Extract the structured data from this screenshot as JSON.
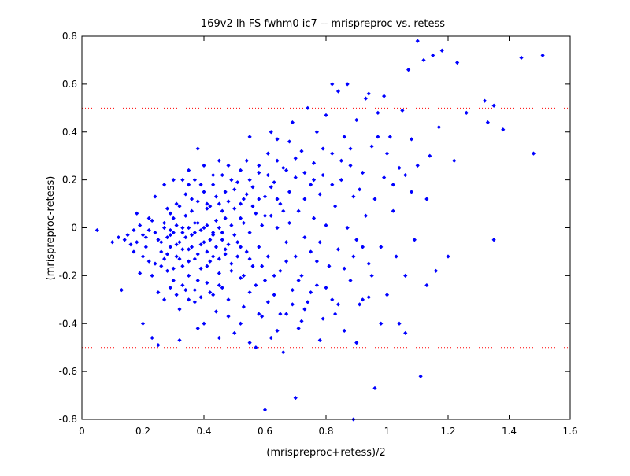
{
  "chart_data": {
    "type": "scatter",
    "title": "169v2 lh FS fwhm0 ic7 -- mrispreproc vs. retess",
    "xlabel": "(mrispreproc+retess)/2",
    "ylabel": "(mrispreproc-retess)",
    "xlim": [
      0,
      1.6
    ],
    "ylim": [
      -0.8,
      0.8
    ],
    "xticks": [
      0,
      0.2,
      0.4,
      0.6,
      0.8,
      1,
      1.2,
      1.4,
      1.6
    ],
    "yticks": [
      -0.8,
      -0.6,
      -0.4,
      -0.2,
      0,
      0.2,
      0.4,
      0.6,
      0.8
    ],
    "xtick_labels": [
      "0",
      "0.2",
      "0.4",
      "0.6",
      "0.8",
      "1",
      "1.2",
      "1.4",
      "1.6"
    ],
    "ytick_labels": [
      "-0.8",
      "-0.6",
      "-0.4",
      "-0.2",
      "0",
      "0.2",
      "0.4",
      "0.6",
      "0.8"
    ],
    "grid": false,
    "reference_lines": [
      0.5,
      -0.5
    ],
    "colors": {
      "points": "#0000ff",
      "reference": "#ff0000",
      "axes": "#000000",
      "background": "#ffffff"
    },
    "points": [
      [
        0.05,
        -0.01
      ],
      [
        0.1,
        -0.06
      ],
      [
        0.12,
        -0.04
      ],
      [
        0.13,
        -0.26
      ],
      [
        0.14,
        -0.05
      ],
      [
        0.15,
        -0.03
      ],
      [
        0.16,
        -0.07
      ],
      [
        0.17,
        -0.01
      ],
      [
        0.17,
        -0.1
      ],
      [
        0.18,
        -0.06
      ],
      [
        0.19,
        -0.19
      ],
      [
        0.2,
        -0.03
      ],
      [
        0.2,
        -0.12
      ],
      [
        0.21,
        -0.08
      ],
      [
        0.22,
        -0.01
      ],
      [
        0.23,
        -0.2
      ],
      [
        0.23,
        0.03
      ],
      [
        0.24,
        -0.15
      ],
      [
        0.25,
        -0.05
      ],
      [
        0.25,
        -0.27
      ],
      [
        0.26,
        -0.1
      ],
      [
        0.27,
        0.02
      ],
      [
        0.27,
        -0.3
      ],
      [
        0.28,
        -0.04
      ],
      [
        0.28,
        -0.18
      ],
      [
        0.29,
        -0.08
      ],
      [
        0.29,
        0.06
      ],
      [
        0.3,
        -0.02
      ],
      [
        0.3,
        -0.22
      ],
      [
        0.31,
        -0.12
      ],
      [
        0.31,
        0.1
      ],
      [
        0.32,
        -0.34
      ],
      [
        0.32,
        -0.06
      ],
      [
        0.33,
        0.0
      ],
      [
        0.33,
        -0.16
      ],
      [
        0.34,
        -0.26
      ],
      [
        0.34,
        0.05
      ],
      [
        0.35,
        -0.09
      ],
      [
        0.35,
        -0.2
      ],
      [
        0.36,
        0.12
      ],
      [
        0.36,
        -0.03
      ],
      [
        0.37,
        -0.31
      ],
      [
        0.37,
        -0.13
      ],
      [
        0.38,
        0.02
      ],
      [
        0.38,
        -0.22
      ],
      [
        0.39,
        0.18
      ],
      [
        0.39,
        -0.07
      ],
      [
        0.4,
        -0.4
      ],
      [
        0.4,
        0.0
      ],
      [
        0.41,
        -0.16
      ],
      [
        0.41,
        0.08
      ],
      [
        0.42,
        -0.27
      ],
      [
        0.42,
        -0.05
      ],
      [
        0.43,
        0.22
      ],
      [
        0.43,
        -0.12
      ],
      [
        0.44,
        0.03
      ],
      [
        0.44,
        -0.35
      ],
      [
        0.45,
        -0.19
      ],
      [
        0.45,
        0.1
      ],
      [
        0.46,
        -0.02
      ],
      [
        0.46,
        -0.25
      ],
      [
        0.47,
        0.15
      ],
      [
        0.47,
        -0.09
      ],
      [
        0.48,
        0.26
      ],
      [
        0.48,
        -0.3
      ],
      [
        0.49,
        0.01
      ],
      [
        0.49,
        -0.15
      ],
      [
        0.5,
        0.08
      ],
      [
        0.5,
        -0.44
      ],
      [
        0.51,
        -0.06
      ],
      [
        0.51,
        0.19
      ],
      [
        0.52,
        -0.21
      ],
      [
        0.52,
        0.04
      ],
      [
        0.53,
        -0.33
      ],
      [
        0.53,
        0.12
      ],
      [
        0.54,
        -0.1
      ],
      [
        0.54,
        0.28
      ],
      [
        0.55,
        -0.02
      ],
      [
        0.55,
        -0.27
      ],
      [
        0.56,
        0.17
      ],
      [
        0.56,
        -0.16
      ],
      [
        0.57,
        0.06
      ],
      [
        0.57,
        -0.5
      ],
      [
        0.58,
        -0.08
      ],
      [
        0.58,
        0.23
      ],
      [
        0.59,
        -0.37
      ],
      [
        0.59,
        0.01
      ],
      [
        0.6,
        0.13
      ],
      [
        0.6,
        -0.22
      ],
      [
        0.61,
        0.31
      ],
      [
        0.61,
        -0.12
      ],
      [
        0.62,
        -0.46
      ],
      [
        0.62,
        0.05
      ],
      [
        0.63,
        0.19
      ],
      [
        0.63,
        -0.28
      ],
      [
        0.64,
        0.0
      ],
      [
        0.64,
        0.37
      ],
      [
        0.65,
        -0.18
      ],
      [
        0.65,
        0.1
      ],
      [
        0.66,
        -0.52
      ],
      [
        0.66,
        0.25
      ],
      [
        0.67,
        -0.06
      ],
      [
        0.67,
        -0.36
      ],
      [
        0.68,
        0.15
      ],
      [
        0.68,
        0.02
      ],
      [
        0.69,
        -0.26
      ],
      [
        0.69,
        0.44
      ],
      [
        0.7,
        -0.12
      ],
      [
        0.7,
        0.21
      ],
      [
        0.71,
        0.07
      ],
      [
        0.71,
        -0.42
      ],
      [
        0.72,
        0.32
      ],
      [
        0.72,
        -0.2
      ],
      [
        0.73,
        0.12
      ],
      [
        0.73,
        -0.04
      ],
      [
        0.74,
        0.5
      ],
      [
        0.74,
        -0.31
      ],
      [
        0.75,
        0.18
      ],
      [
        0.75,
        -0.1
      ],
      [
        0.76,
        0.04
      ],
      [
        0.76,
        0.27
      ],
      [
        0.77,
        -0.24
      ],
      [
        0.77,
        0.4
      ],
      [
        0.78,
        -0.06
      ],
      [
        0.78,
        0.14
      ],
      [
        0.79,
        -0.38
      ],
      [
        0.79,
        0.22
      ],
      [
        0.8,
        0.01
      ],
      [
        0.8,
        0.47
      ],
      [
        0.81,
        -0.16
      ],
      [
        0.82,
        0.31
      ],
      [
        0.82,
        -0.3
      ],
      [
        0.83,
        0.09
      ],
      [
        0.84,
        0.57
      ],
      [
        0.84,
        -0.09
      ],
      [
        0.85,
        0.2
      ],
      [
        0.86,
        -0.43
      ],
      [
        0.86,
        0.38
      ],
      [
        0.87,
        0.0
      ],
      [
        0.88,
        0.26
      ],
      [
        0.88,
        -0.22
      ],
      [
        0.89,
        0.13
      ],
      [
        0.9,
        0.45
      ],
      [
        0.9,
        -0.05
      ],
      [
        0.91,
        -0.32
      ],
      [
        0.92,
        0.23
      ],
      [
        0.93,
        0.05
      ],
      [
        0.93,
        0.54
      ],
      [
        0.94,
        -0.15
      ],
      [
        0.95,
        0.34
      ],
      [
        0.96,
        -0.67
      ],
      [
        0.96,
        0.12
      ],
      [
        0.97,
        0.48
      ],
      [
        0.98,
        -0.08
      ],
      [
        0.99,
        0.21
      ],
      [
        1.0,
        -0.28
      ],
      [
        1.01,
        0.38
      ],
      [
        1.02,
        0.07
      ],
      [
        1.03,
        -0.12
      ],
      [
        1.04,
        0.25
      ],
      [
        1.05,
        0.49
      ],
      [
        1.06,
        -0.2
      ],
      [
        1.07,
        0.66
      ],
      [
        1.08,
        0.15
      ],
      [
        1.09,
        -0.05
      ],
      [
        1.1,
        0.78
      ],
      [
        1.11,
        -0.62
      ],
      [
        1.12,
        0.7
      ],
      [
        1.13,
        -0.24
      ],
      [
        1.14,
        0.3
      ],
      [
        1.15,
        0.72
      ],
      [
        1.16,
        -0.18
      ],
      [
        1.18,
        0.74
      ],
      [
        1.2,
        -0.12
      ],
      [
        1.22,
        0.28
      ],
      [
        1.23,
        0.69
      ],
      [
        1.26,
        0.48
      ],
      [
        1.32,
        0.53
      ],
      [
        1.33,
        0.44
      ],
      [
        1.35,
        0.51
      ],
      [
        1.35,
        -0.05
      ],
      [
        1.38,
        0.41
      ],
      [
        1.44,
        0.71
      ],
      [
        1.48,
        0.31
      ],
      [
        1.51,
        0.72
      ],
      [
        0.21,
        -0.04
      ],
      [
        0.22,
        -0.14
      ],
      [
        0.24,
        -0.02
      ],
      [
        0.26,
        -0.16
      ],
      [
        0.26,
        -0.06
      ],
      [
        0.28,
        -0.11
      ],
      [
        0.29,
        -0.03
      ],
      [
        0.3,
        -0.17
      ],
      [
        0.31,
        -0.07
      ],
      [
        0.32,
        -0.13
      ],
      [
        0.33,
        -0.09
      ],
      [
        0.34,
        -0.04
      ],
      [
        0.35,
        -0.14
      ],
      [
        0.36,
        -0.08
      ],
      [
        0.37,
        -0.02
      ],
      [
        0.38,
        -0.11
      ],
      [
        0.39,
        -0.17
      ],
      [
        0.4,
        -0.06
      ],
      [
        0.41,
        -0.1
      ],
      [
        0.42,
        -0.14
      ],
      [
        0.43,
        -0.03
      ],
      [
        0.44,
        -0.08
      ],
      [
        0.45,
        -0.13
      ],
      [
        0.46,
        -0.05
      ],
      [
        0.47,
        -0.11
      ],
      [
        0.48,
        -0.07
      ],
      [
        0.49,
        -0.18
      ],
      [
        0.5,
        -0.03
      ],
      [
        0.51,
        -0.12
      ],
      [
        0.52,
        -0.08
      ],
      [
        0.27,
        -0.13
      ],
      [
        0.29,
        -0.25
      ],
      [
        0.31,
        -0.28
      ],
      [
        0.33,
        -0.24
      ],
      [
        0.35,
        -0.3
      ],
      [
        0.37,
        -0.26
      ],
      [
        0.39,
        -0.29
      ],
      [
        0.41,
        -0.23
      ],
      [
        0.43,
        -0.28
      ],
      [
        0.45,
        -0.24
      ],
      [
        0.28,
        0.08
      ],
      [
        0.3,
        0.04
      ],
      [
        0.32,
        0.09
      ],
      [
        0.34,
        0.14
      ],
      [
        0.36,
        0.07
      ],
      [
        0.38,
        0.11
      ],
      [
        0.4,
        0.15
      ],
      [
        0.42,
        0.09
      ],
      [
        0.44,
        0.13
      ],
      [
        0.46,
        0.07
      ],
      [
        0.48,
        0.11
      ],
      [
        0.5,
        0.16
      ],
      [
        0.52,
        0.1
      ],
      [
        0.54,
        0.14
      ],
      [
        0.56,
        0.09
      ],
      [
        0.58,
        0.12
      ],
      [
        0.6,
        0.05
      ],
      [
        0.62,
        0.17
      ],
      [
        0.64,
        0.12
      ],
      [
        0.66,
        0.07
      ],
      [
        0.35,
        0.24
      ],
      [
        0.37,
        0.2
      ],
      [
        0.4,
        0.26
      ],
      [
        0.43,
        0.18
      ],
      [
        0.46,
        0.22
      ],
      [
        0.49,
        0.2
      ],
      [
        0.52,
        0.24
      ],
      [
        0.55,
        0.2
      ],
      [
        0.58,
        0.26
      ],
      [
        0.61,
        0.22
      ],
      [
        0.64,
        0.28
      ],
      [
        0.67,
        0.24
      ],
      [
        0.7,
        0.29
      ],
      [
        0.73,
        0.23
      ],
      [
        0.76,
        0.2
      ],
      [
        0.79,
        0.33
      ],
      [
        0.82,
        0.18
      ],
      [
        0.85,
        0.28
      ],
      [
        0.88,
        0.33
      ],
      [
        0.91,
        0.16
      ],
      [
        0.53,
        -0.2
      ],
      [
        0.55,
        -0.13
      ],
      [
        0.57,
        -0.24
      ],
      [
        0.59,
        -0.16
      ],
      [
        0.61,
        -0.31
      ],
      [
        0.63,
        -0.2
      ],
      [
        0.65,
        -0.36
      ],
      [
        0.67,
        -0.14
      ],
      [
        0.69,
        -0.32
      ],
      [
        0.71,
        -0.22
      ],
      [
        0.73,
        -0.34
      ],
      [
        0.75,
        -0.27
      ],
      [
        0.77,
        -0.14
      ],
      [
        0.8,
        -0.25
      ],
      [
        0.83,
        -0.36
      ],
      [
        0.86,
        -0.17
      ],
      [
        0.89,
        -0.12
      ],
      [
        0.92,
        -0.08
      ],
      [
        0.95,
        -0.2
      ],
      [
        0.98,
        -0.4
      ],
      [
        0.6,
        -0.76
      ],
      [
        0.7,
        -0.71
      ],
      [
        0.89,
        -0.8
      ],
      [
        0.2,
        -0.4
      ],
      [
        0.23,
        -0.46
      ],
      [
        0.25,
        -0.49
      ],
      [
        0.32,
        -0.47
      ],
      [
        0.38,
        -0.42
      ],
      [
        0.45,
        -0.46
      ],
      [
        0.55,
        -0.48
      ],
      [
        0.3,
        0.2
      ],
      [
        0.38,
        0.33
      ],
      [
        0.45,
        0.28
      ],
      [
        0.55,
        0.38
      ],
      [
        0.62,
        0.4
      ],
      [
        0.68,
        0.36
      ],
      [
        0.82,
        0.6
      ],
      [
        0.87,
        0.6
      ],
      [
        0.94,
        0.56
      ],
      [
        0.99,
        0.55
      ],
      [
        0.18,
        0.06
      ],
      [
        0.19,
        0.01
      ],
      [
        0.22,
        0.04
      ],
      [
        0.24,
        0.13
      ],
      [
        0.27,
        0.18
      ],
      [
        0.33,
        0.2
      ],
      [
        0.35,
        0.18
      ],
      [
        0.41,
        0.1
      ],
      [
        0.47,
        0.04
      ],
      [
        0.53,
        0.02
      ],
      [
        0.27,
        0.0
      ],
      [
        0.29,
        -0.01
      ],
      [
        0.31,
        0.01
      ],
      [
        0.33,
        -0.02
      ],
      [
        0.35,
        0.0
      ],
      [
        0.37,
        0.02
      ],
      [
        0.39,
        -0.01
      ],
      [
        0.41,
        0.01
      ],
      [
        0.43,
        -0.02
      ],
      [
        0.45,
        0.0
      ],
      [
        1.02,
        0.18
      ],
      [
        1.06,
        0.22
      ],
      [
        1.08,
        0.37
      ],
      [
        1.1,
        0.26
      ],
      [
        1.13,
        0.12
      ],
      [
        1.17,
        0.42
      ],
      [
        1.0,
        0.31
      ],
      [
        0.97,
        0.38
      ],
      [
        1.04,
        -0.4
      ],
      [
        1.06,
        -0.44
      ],
      [
        0.92,
        -0.3
      ],
      [
        0.94,
        -0.29
      ],
      [
        0.9,
        -0.48
      ],
      [
        0.84,
        -0.32
      ],
      [
        0.78,
        -0.47
      ],
      [
        0.72,
        -0.39
      ],
      [
        0.64,
        -0.43
      ],
      [
        0.58,
        -0.36
      ],
      [
        0.52,
        -0.4
      ],
      [
        0.48,
        -0.37
      ]
    ]
  }
}
